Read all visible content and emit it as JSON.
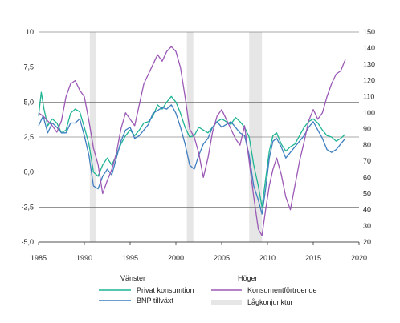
{
  "chart_data": {
    "type": "line",
    "title": "",
    "xlabel": "",
    "ylabel_left": "",
    "ylabel_right": "",
    "x_ticks": [
      1985,
      1990,
      1995,
      2000,
      2005,
      2010,
      2015,
      2020
    ],
    "x_range": [
      1985,
      2020
    ],
    "y_left_ticks": [
      "10",
      "7,5",
      "5,0",
      "2,5",
      "0,0",
      "-2,5",
      "-5,0"
    ],
    "y_left_range": [
      -5,
      10
    ],
    "y_right_ticks": [
      "150",
      "140",
      "130",
      "120",
      "110",
      "100",
      "90",
      "80",
      "70",
      "60",
      "50",
      "40",
      "30",
      "20"
    ],
    "y_right_range": [
      20,
      150
    ],
    "grid": true,
    "legend_placement": "bottom",
    "legend": {
      "left_header": "Vänster",
      "right_header": "Höger",
      "items": [
        {
          "label": "Privat konsumtion",
          "color": "#1fb494"
        },
        {
          "label": "BNP tillväxt",
          "color": "#3f7fc0"
        },
        {
          "label": "Konsumentförtroende",
          "color": "#9b59b6"
        },
        {
          "label": "Lågkonjunktur",
          "color": "#e6e6e6"
        }
      ]
    },
    "recessions": [
      [
        1990.6,
        1991.3
      ],
      [
        2001.2,
        2001.9
      ],
      [
        2008.0,
        2009.4
      ]
    ],
    "series": [
      {
        "name": "Privat konsumtion",
        "axis": "left",
        "color": "#1fb494",
        "points": [
          [
            1985.0,
            4.0
          ],
          [
            1985.3,
            5.7
          ],
          [
            1985.6,
            4.5
          ],
          [
            1986.0,
            3.3
          ],
          [
            1986.5,
            3.8
          ],
          [
            1987.0,
            3.5
          ],
          [
            1987.5,
            2.8
          ],
          [
            1988.0,
            3.0
          ],
          [
            1988.5,
            4.2
          ],
          [
            1989.0,
            4.5
          ],
          [
            1989.5,
            4.3
          ],
          [
            1990.0,
            3.2
          ],
          [
            1990.5,
            2.0
          ],
          [
            1991.0,
            0.0
          ],
          [
            1991.5,
            -0.3
          ],
          [
            1992.0,
            0.5
          ],
          [
            1992.5,
            1.0
          ],
          [
            1993.0,
            0.5
          ],
          [
            1993.5,
            1.2
          ],
          [
            1994.0,
            2.0
          ],
          [
            1994.5,
            2.6
          ],
          [
            1995.0,
            3.0
          ],
          [
            1995.5,
            2.6
          ],
          [
            1996.0,
            3.0
          ],
          [
            1996.5,
            3.5
          ],
          [
            1997.0,
            3.6
          ],
          [
            1997.5,
            4.0
          ],
          [
            1998.0,
            4.8
          ],
          [
            1998.5,
            4.5
          ],
          [
            1999.0,
            5.0
          ],
          [
            1999.5,
            5.4
          ],
          [
            2000.0,
            5.0
          ],
          [
            2000.5,
            4.2
          ],
          [
            2001.0,
            3.2
          ],
          [
            2001.5,
            2.5
          ],
          [
            2002.0,
            2.6
          ],
          [
            2002.5,
            3.2
          ],
          [
            2003.0,
            3.0
          ],
          [
            2003.5,
            2.8
          ],
          [
            2004.0,
            3.2
          ],
          [
            2004.5,
            3.6
          ],
          [
            2005.0,
            3.8
          ],
          [
            2005.5,
            3.6
          ],
          [
            2006.0,
            3.4
          ],
          [
            2006.5,
            3.9
          ],
          [
            2007.0,
            3.6
          ],
          [
            2007.5,
            3.2
          ],
          [
            2008.0,
            2.5
          ],
          [
            2008.5,
            0.5
          ],
          [
            2009.0,
            -1.0
          ],
          [
            2009.4,
            -2.5
          ],
          [
            2009.8,
            -0.5
          ],
          [
            2010.2,
            1.5
          ],
          [
            2010.6,
            2.6
          ],
          [
            2011.0,
            2.8
          ],
          [
            2011.5,
            2.0
          ],
          [
            2012.0,
            1.5
          ],
          [
            2012.5,
            1.8
          ],
          [
            2013.0,
            2.0
          ],
          [
            2013.5,
            2.6
          ],
          [
            2014.0,
            3.2
          ],
          [
            2014.5,
            3.6
          ],
          [
            2015.0,
            3.8
          ],
          [
            2015.5,
            3.5
          ],
          [
            2016.0,
            3.0
          ],
          [
            2016.5,
            2.6
          ],
          [
            2017.0,
            2.5
          ],
          [
            2017.5,
            2.2
          ],
          [
            2018.0,
            2.4
          ],
          [
            2018.5,
            2.7
          ]
        ]
      },
      {
        "name": "BNP tillväxt",
        "axis": "left",
        "color": "#3f7fc0",
        "points": [
          [
            1985.0,
            3.3
          ],
          [
            1985.5,
            4.0
          ],
          [
            1986.0,
            2.8
          ],
          [
            1986.5,
            3.5
          ],
          [
            1987.0,
            3.2
          ],
          [
            1987.5,
            2.8
          ],
          [
            1988.0,
            2.8
          ],
          [
            1988.5,
            3.5
          ],
          [
            1989.0,
            3.5
          ],
          [
            1989.5,
            3.8
          ],
          [
            1990.0,
            2.6
          ],
          [
            1990.5,
            1.2
          ],
          [
            1991.0,
            -1.0
          ],
          [
            1991.5,
            -1.2
          ],
          [
            1992.0,
            -0.3
          ],
          [
            1992.5,
            0.2
          ],
          [
            1993.0,
            -0.2
          ],
          [
            1993.5,
            1.0
          ],
          [
            1994.0,
            2.2
          ],
          [
            1994.5,
            3.0
          ],
          [
            1995.0,
            3.2
          ],
          [
            1995.5,
            2.4
          ],
          [
            1996.0,
            2.6
          ],
          [
            1996.5,
            3.0
          ],
          [
            1997.0,
            3.4
          ],
          [
            1997.5,
            4.2
          ],
          [
            1998.0,
            4.4
          ],
          [
            1998.5,
            4.6
          ],
          [
            1999.0,
            4.5
          ],
          [
            1999.5,
            4.8
          ],
          [
            2000.0,
            4.2
          ],
          [
            2000.5,
            3.2
          ],
          [
            2001.0,
            2.0
          ],
          [
            2001.5,
            0.5
          ],
          [
            2002.0,
            0.2
          ],
          [
            2002.5,
            1.2
          ],
          [
            2003.0,
            2.0
          ],
          [
            2003.5,
            2.4
          ],
          [
            2004.0,
            3.2
          ],
          [
            2004.5,
            3.6
          ],
          [
            2005.0,
            3.2
          ],
          [
            2005.5,
            3.4
          ],
          [
            2006.0,
            3.6
          ],
          [
            2006.5,
            3.2
          ],
          [
            2007.0,
            2.8
          ],
          [
            2007.5,
            2.6
          ],
          [
            2008.0,
            1.2
          ],
          [
            2008.5,
            -1.0
          ],
          [
            2009.0,
            -2.0
          ],
          [
            2009.4,
            -3.0
          ],
          [
            2009.8,
            -1.2
          ],
          [
            2010.2,
            1.0
          ],
          [
            2010.6,
            2.2
          ],
          [
            2011.0,
            2.4
          ],
          [
            2011.5,
            1.8
          ],
          [
            2012.0,
            1.0
          ],
          [
            2012.5,
            1.4
          ],
          [
            2013.0,
            1.8
          ],
          [
            2013.5,
            2.2
          ],
          [
            2014.0,
            2.6
          ],
          [
            2014.5,
            3.2
          ],
          [
            2015.0,
            3.6
          ],
          [
            2015.5,
            3.0
          ],
          [
            2016.0,
            2.4
          ],
          [
            2016.5,
            1.6
          ],
          [
            2017.0,
            1.4
          ],
          [
            2017.5,
            1.6
          ],
          [
            2018.0,
            2.0
          ],
          [
            2018.5,
            2.4
          ]
        ]
      },
      {
        "name": "Konsumentförtroende",
        "axis": "right",
        "color": "#9b59b6",
        "points": [
          [
            1985.0,
            100.0
          ],
          [
            1985.5,
            98.0
          ],
          [
            1986.0,
            95.0
          ],
          [
            1986.5,
            92.0
          ],
          [
            1987.0,
            88.0
          ],
          [
            1987.5,
            95.0
          ],
          [
            1988.0,
            110.0
          ],
          [
            1988.5,
            118.0
          ],
          [
            1989.0,
            120.0
          ],
          [
            1989.5,
            114.0
          ],
          [
            1990.0,
            110.0
          ],
          [
            1990.5,
            95.0
          ],
          [
            1991.0,
            78.0
          ],
          [
            1991.5,
            68.0
          ],
          [
            1992.0,
            50.0
          ],
          [
            1992.5,
            58.0
          ],
          [
            1993.0,
            65.0
          ],
          [
            1993.5,
            75.0
          ],
          [
            1994.0,
            90.0
          ],
          [
            1994.5,
            100.0
          ],
          [
            1995.0,
            96.0
          ],
          [
            1995.5,
            92.0
          ],
          [
            1996.0,
            105.0
          ],
          [
            1996.5,
            118.0
          ],
          [
            1997.0,
            124.0
          ],
          [
            1997.5,
            130.0
          ],
          [
            1998.0,
            136.0
          ],
          [
            1998.5,
            132.0
          ],
          [
            1999.0,
            138.0
          ],
          [
            1999.5,
            141.0
          ],
          [
            2000.0,
            138.0
          ],
          [
            2000.5,
            128.0
          ],
          [
            2001.0,
            110.0
          ],
          [
            2001.5,
            90.0
          ],
          [
            2002.0,
            85.0
          ],
          [
            2002.5,
            75.0
          ],
          [
            2003.0,
            60.0
          ],
          [
            2003.5,
            72.0
          ],
          [
            2004.0,
            88.0
          ],
          [
            2004.5,
            98.0
          ],
          [
            2005.0,
            102.0
          ],
          [
            2005.5,
            96.0
          ],
          [
            2006.0,
            90.0
          ],
          [
            2006.5,
            84.0
          ],
          [
            2007.0,
            80.0
          ],
          [
            2007.5,
            92.0
          ],
          [
            2008.0,
            70.0
          ],
          [
            2008.5,
            48.0
          ],
          [
            2009.0,
            28.0
          ],
          [
            2009.4,
            24.0
          ],
          [
            2009.8,
            40.0
          ],
          [
            2010.2,
            55.0
          ],
          [
            2010.6,
            65.0
          ],
          [
            2011.0,
            72.0
          ],
          [
            2011.5,
            62.0
          ],
          [
            2012.0,
            48.0
          ],
          [
            2012.5,
            40.0
          ],
          [
            2013.0,
            55.0
          ],
          [
            2013.5,
            70.0
          ],
          [
            2014.0,
            82.0
          ],
          [
            2014.5,
            95.0
          ],
          [
            2015.0,
            102.0
          ],
          [
            2015.5,
            96.0
          ],
          [
            2016.0,
            100.0
          ],
          [
            2016.5,
            110.0
          ],
          [
            2017.0,
            118.0
          ],
          [
            2017.5,
            124.0
          ],
          [
            2018.0,
            126.0
          ],
          [
            2018.5,
            133.0
          ]
        ]
      }
    ]
  }
}
